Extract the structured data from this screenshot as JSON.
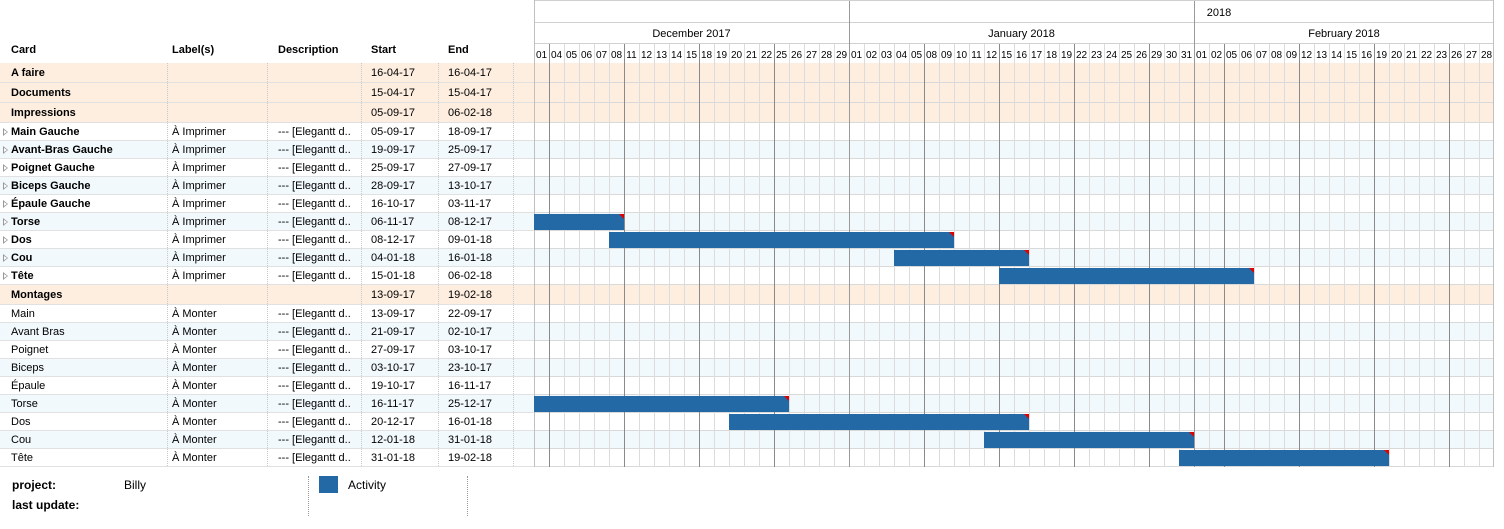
{
  "columns": {
    "card": "Card",
    "labels": "Label(s)",
    "description": "Description",
    "start": "Start",
    "end": "End"
  },
  "timeline": {
    "year": "2018",
    "months": [
      "December 2017",
      "January 2018",
      "February 2018"
    ],
    "days": {
      "december": [
        "01",
        "04",
        "05",
        "06",
        "07",
        "08",
        "11",
        "12",
        "13",
        "14",
        "15",
        "18",
        "19",
        "20",
        "21",
        "22",
        "25",
        "26",
        "27",
        "28",
        "29"
      ],
      "january": [
        "01",
        "02",
        "03",
        "04",
        "05",
        "08",
        "09",
        "10",
        "11",
        "12",
        "15",
        "16",
        "17",
        "18",
        "19",
        "22",
        "23",
        "24",
        "25",
        "26",
        "29",
        "30",
        "31"
      ],
      "february": [
        "01",
        "02",
        "05",
        "06",
        "07",
        "08",
        "09",
        "12",
        "13",
        "14",
        "15",
        "16",
        "19",
        "20",
        "21",
        "22",
        "23",
        "26",
        "27",
        "28"
      ]
    }
  },
  "rows": [
    {
      "type": "group",
      "card": "A faire",
      "label": "",
      "desc": "",
      "start": "16-04-17",
      "end": "16-04-17"
    },
    {
      "type": "group",
      "card": "Documents",
      "label": "",
      "desc": "",
      "start": "15-04-17",
      "end": "15-04-17"
    },
    {
      "type": "group",
      "card": "Impressions",
      "label": "",
      "desc": "",
      "start": "05-09-17",
      "end": "06-02-18"
    },
    {
      "type": "sub",
      "card": "Main Gauche",
      "label": "À Imprimer",
      "desc": "--- [Elegantt d..",
      "start": "05-09-17",
      "end": "18-09-17"
    },
    {
      "type": "sub",
      "card": "Avant-Bras Gauche",
      "label": "À Imprimer",
      "desc": "--- [Elegantt d..",
      "start": "19-09-17",
      "end": "25-09-17"
    },
    {
      "type": "sub",
      "card": "Poignet Gauche",
      "label": "À Imprimer",
      "desc": "--- [Elegantt d..",
      "start": "25-09-17",
      "end": "27-09-17"
    },
    {
      "type": "sub",
      "card": "Biceps Gauche",
      "label": "À Imprimer",
      "desc": "--- [Elegantt d..",
      "start": "28-09-17",
      "end": "13-10-17"
    },
    {
      "type": "sub",
      "card": "Épaule Gauche",
      "label": "À Imprimer",
      "desc": "--- [Elegantt d..",
      "start": "16-10-17",
      "end": "03-11-17"
    },
    {
      "type": "sub",
      "card": "Torse",
      "label": "À Imprimer",
      "desc": "--- [Elegantt d..",
      "start": "06-11-17",
      "end": "08-12-17"
    },
    {
      "type": "sub",
      "card": "Dos",
      "label": "À Imprimer",
      "desc": "--- [Elegantt d..",
      "start": "08-12-17",
      "end": "09-01-18"
    },
    {
      "type": "sub",
      "card": "Cou",
      "label": "À Imprimer",
      "desc": "--- [Elegantt d..",
      "start": "04-01-18",
      "end": "16-01-18"
    },
    {
      "type": "sub",
      "card": "Tête",
      "label": "À Imprimer",
      "desc": "--- [Elegantt d..",
      "start": "15-01-18",
      "end": "06-02-18"
    },
    {
      "type": "group",
      "card": "Montages",
      "label": "",
      "desc": "",
      "start": "13-09-17",
      "end": "19-02-18"
    },
    {
      "type": "task",
      "card": "Main",
      "label": "À Monter",
      "desc": "--- [Elegantt d..",
      "start": "13-09-17",
      "end": "22-09-17"
    },
    {
      "type": "task",
      "card": "Avant Bras",
      "label": "À Monter",
      "desc": "--- [Elegantt d..",
      "start": "21-09-17",
      "end": "02-10-17"
    },
    {
      "type": "task",
      "card": "Poignet",
      "label": "À Monter",
      "desc": "--- [Elegantt d..",
      "start": "27-09-17",
      "end": "03-10-17"
    },
    {
      "type": "task",
      "card": "Biceps",
      "label": "À Monter",
      "desc": "--- [Elegantt d..",
      "start": "03-10-17",
      "end": "23-10-17"
    },
    {
      "type": "task",
      "card": "Épaule",
      "label": "À Monter",
      "desc": "--- [Elegantt d..",
      "start": "19-10-17",
      "end": "16-11-17"
    },
    {
      "type": "task",
      "card": "Torse",
      "label": "À Monter",
      "desc": "--- [Elegantt d..",
      "start": "16-11-17",
      "end": "25-12-17"
    },
    {
      "type": "task",
      "card": "Dos",
      "label": "À Monter",
      "desc": "--- [Elegantt d..",
      "start": "20-12-17",
      "end": "16-01-18"
    },
    {
      "type": "task",
      "card": "Cou",
      "label": "À Monter",
      "desc": "--- [Elegantt d..",
      "start": "12-01-18",
      "end": "31-01-18"
    },
    {
      "type": "task",
      "card": "Tête",
      "label": "À Monter",
      "desc": "--- [Elegantt d..",
      "start": "31-01-18",
      "end": "19-02-18"
    }
  ],
  "footer": {
    "project_label": "project:",
    "project_value": "Billy",
    "last_update_label": "last update:",
    "legend_activity": "Activity"
  },
  "colors": {
    "bar": "#2369a6",
    "bar_flag": "#e00000",
    "group_bg": "#fdeee0",
    "alt_bg": "#f1f9fd"
  }
}
